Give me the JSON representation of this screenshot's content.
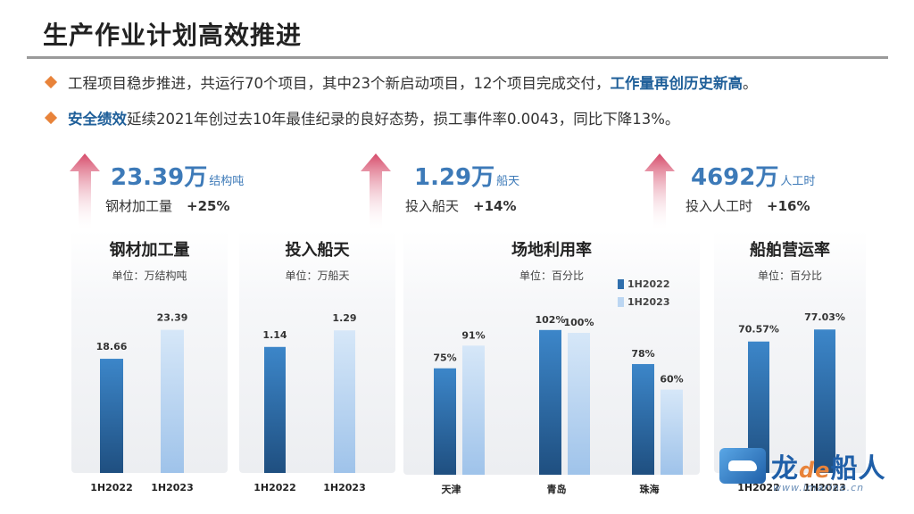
{
  "page": {
    "title": "生产作业计划高效推进",
    "bullets": [
      {
        "text": "工程项目稳步推进，共运行70个项目，其中23个新启动项目，12个项目完成交付，",
        "highlight": "工作量再创历史新高",
        "tail": "。"
      },
      {
        "highlight": "安全绩效",
        "text": "延续2021年创过去10年最佳纪录的良好态势，损工事件率0.0043，同比下降13%。"
      }
    ],
    "kpis": [
      {
        "value": "23.39万",
        "unit": "结构吨",
        "label": "钢材加工量",
        "change": "+25%"
      },
      {
        "value": "1.29万",
        "unit": "船天",
        "label": "投入船天",
        "change": "+14%"
      },
      {
        "value": "4692万",
        "unit": "人工时",
        "label": "投入人工时",
        "change": "+16%"
      }
    ],
    "colors": {
      "accent": "#1f5f99",
      "bullet": "#e8833a",
      "series_2022": "#2f6fad",
      "series_2023": "#bcd6f2",
      "arrow": "#d64b6a"
    },
    "watermark": {
      "brand_a": "龙",
      "brand_de": "de",
      "brand_b": "船人",
      "url": "www.imarine.cn"
    }
  },
  "chart_data": [
    {
      "type": "bar",
      "title": "钢材加工量",
      "unit_label": "单位：万结构吨",
      "categories": [
        "1H2022",
        "1H2023"
      ],
      "values": [
        18.66,
        23.39
      ],
      "data_labels": [
        "18.66",
        "23.39"
      ],
      "ylim": [
        0,
        28
      ]
    },
    {
      "type": "bar",
      "title": "投入船天",
      "unit_label": "单位：万船天",
      "categories": [
        "1H2022",
        "1H2023"
      ],
      "values": [
        1.14,
        1.29
      ],
      "data_labels": [
        "1.14",
        "1.29"
      ],
      "ylim": [
        0,
        1.55
      ]
    },
    {
      "type": "bar",
      "title": "场地利用率",
      "unit_label": "单位：百分比",
      "categories": [
        "天津",
        "青岛",
        "珠海"
      ],
      "series": [
        {
          "name": "1H2022",
          "values": [
            75,
            102,
            78
          ],
          "data_labels": [
            "75%",
            "102%",
            "78%"
          ]
        },
        {
          "name": "1H2023",
          "values": [
            91,
            100,
            60
          ],
          "data_labels": [
            "91%",
            "100%",
            "60%"
          ]
        }
      ],
      "legend_position": "top-right",
      "ylim": [
        0,
        122
      ]
    },
    {
      "type": "bar",
      "title": "船舶营运率",
      "unit_label": "单位：百分比",
      "categories": [
        "1H2022",
        "1H2023"
      ],
      "values": [
        70.57,
        77.03
      ],
      "data_labels": [
        "70.57%",
        "77.03%"
      ],
      "ylim": [
        0,
        92
      ]
    }
  ]
}
